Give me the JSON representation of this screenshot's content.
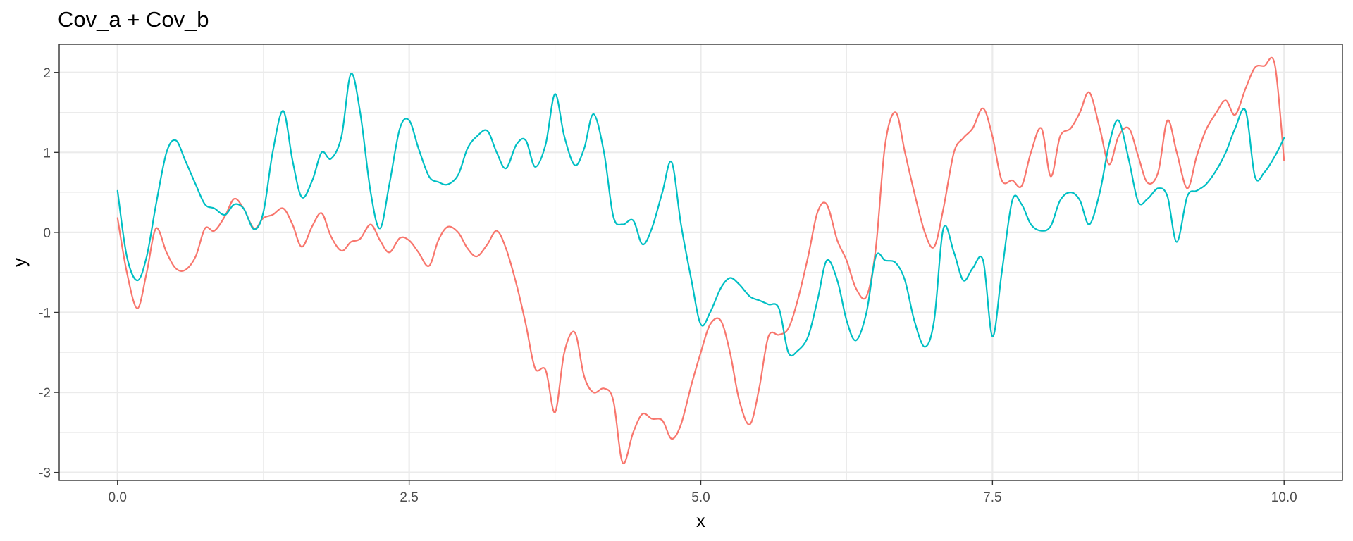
{
  "chart_data": {
    "type": "line",
    "title": "Cov_a + Cov_b",
    "xlabel": "x",
    "ylabel": "y",
    "xlim": [
      -0.5,
      10.5
    ],
    "ylim": [
      -3.1,
      2.35
    ],
    "x_ticks": [
      0.0,
      2.5,
      5.0,
      7.5,
      10.0
    ],
    "x_tick_labels": [
      "0.0",
      "2.5",
      "5.0",
      "7.5",
      "10.0"
    ],
    "y_ticks": [
      -3,
      -2,
      -1,
      0,
      1,
      2
    ],
    "y_tick_labels": [
      "-3",
      "-2",
      "-1",
      "0",
      "1",
      "2"
    ],
    "grid": true,
    "legend": "none",
    "series": [
      {
        "color": "#F8766D",
        "points": [
          [
            0.0,
            0.18
          ],
          [
            0.08,
            -0.5
          ],
          [
            0.17,
            -0.95
          ],
          [
            0.25,
            -0.5
          ],
          [
            0.33,
            0.05
          ],
          [
            0.42,
            -0.25
          ],
          [
            0.5,
            -0.45
          ],
          [
            0.58,
            -0.47
          ],
          [
            0.67,
            -0.3
          ],
          [
            0.75,
            0.05
          ],
          [
            0.83,
            0.02
          ],
          [
            0.92,
            0.2
          ],
          [
            1.0,
            0.42
          ],
          [
            1.08,
            0.3
          ],
          [
            1.17,
            0.05
          ],
          [
            1.25,
            0.18
          ],
          [
            1.33,
            0.22
          ],
          [
            1.42,
            0.3
          ],
          [
            1.5,
            0.1
          ],
          [
            1.58,
            -0.18
          ],
          [
            1.67,
            0.08
          ],
          [
            1.75,
            0.24
          ],
          [
            1.83,
            -0.05
          ],
          [
            1.92,
            -0.23
          ],
          [
            2.0,
            -0.12
          ],
          [
            2.08,
            -0.08
          ],
          [
            2.17,
            0.1
          ],
          [
            2.25,
            -0.1
          ],
          [
            2.33,
            -0.25
          ],
          [
            2.42,
            -0.07
          ],
          [
            2.5,
            -0.1
          ],
          [
            2.58,
            -0.25
          ],
          [
            2.67,
            -0.42
          ],
          [
            2.75,
            -0.1
          ],
          [
            2.83,
            0.07
          ],
          [
            2.92,
            0.0
          ],
          [
            3.0,
            -0.2
          ],
          [
            3.08,
            -0.3
          ],
          [
            3.17,
            -0.15
          ],
          [
            3.25,
            0.02
          ],
          [
            3.33,
            -0.2
          ],
          [
            3.42,
            -0.65
          ],
          [
            3.5,
            -1.15
          ],
          [
            3.58,
            -1.7
          ],
          [
            3.67,
            -1.72
          ],
          [
            3.75,
            -2.25
          ],
          [
            3.83,
            -1.5
          ],
          [
            3.92,
            -1.25
          ],
          [
            4.0,
            -1.8
          ],
          [
            4.08,
            -2.0
          ],
          [
            4.17,
            -1.95
          ],
          [
            4.25,
            -2.1
          ],
          [
            4.33,
            -2.88
          ],
          [
            4.42,
            -2.5
          ],
          [
            4.5,
            -2.27
          ],
          [
            4.58,
            -2.33
          ],
          [
            4.67,
            -2.35
          ],
          [
            4.75,
            -2.58
          ],
          [
            4.83,
            -2.4
          ],
          [
            4.92,
            -1.9
          ],
          [
            5.0,
            -1.5
          ],
          [
            5.08,
            -1.15
          ],
          [
            5.17,
            -1.1
          ],
          [
            5.25,
            -1.5
          ],
          [
            5.33,
            -2.1
          ],
          [
            5.42,
            -2.4
          ],
          [
            5.5,
            -1.95
          ],
          [
            5.58,
            -1.3
          ],
          [
            5.67,
            -1.28
          ],
          [
            5.75,
            -1.2
          ],
          [
            5.83,
            -0.85
          ],
          [
            5.92,
            -0.3
          ],
          [
            6.0,
            0.25
          ],
          [
            6.08,
            0.35
          ],
          [
            6.17,
            -0.1
          ],
          [
            6.25,
            -0.35
          ],
          [
            6.33,
            -0.7
          ],
          [
            6.42,
            -0.8
          ],
          [
            6.5,
            -0.2
          ],
          [
            6.58,
            1.1
          ],
          [
            6.67,
            1.5
          ],
          [
            6.75,
            1.0
          ],
          [
            6.83,
            0.5
          ],
          [
            6.92,
            0.0
          ],
          [
            7.0,
            -0.18
          ],
          [
            7.08,
            0.3
          ],
          [
            7.17,
            1.0
          ],
          [
            7.25,
            1.18
          ],
          [
            7.33,
            1.3
          ],
          [
            7.42,
            1.55
          ],
          [
            7.5,
            1.2
          ],
          [
            7.58,
            0.65
          ],
          [
            7.67,
            0.65
          ],
          [
            7.75,
            0.58
          ],
          [
            7.83,
            1.0
          ],
          [
            7.92,
            1.3
          ],
          [
            8.0,
            0.7
          ],
          [
            8.08,
            1.2
          ],
          [
            8.17,
            1.3
          ],
          [
            8.25,
            1.5
          ],
          [
            8.33,
            1.75
          ],
          [
            8.42,
            1.3
          ],
          [
            8.5,
            0.85
          ],
          [
            8.58,
            1.2
          ],
          [
            8.67,
            1.3
          ],
          [
            8.75,
            0.95
          ],
          [
            8.83,
            0.62
          ],
          [
            8.92,
            0.75
          ],
          [
            9.0,
            1.4
          ],
          [
            9.08,
            1.0
          ],
          [
            9.17,
            0.55
          ],
          [
            9.25,
            0.95
          ],
          [
            9.33,
            1.28
          ],
          [
            9.42,
            1.5
          ],
          [
            9.5,
            1.65
          ],
          [
            9.58,
            1.47
          ],
          [
            9.67,
            1.8
          ],
          [
            9.75,
            2.06
          ],
          [
            9.83,
            2.08
          ],
          [
            9.92,
            2.1
          ],
          [
            10.0,
            0.9
          ]
        ]
      },
      {
        "color": "#00BFC4",
        "points": [
          [
            0.0,
            0.52
          ],
          [
            0.08,
            -0.3
          ],
          [
            0.17,
            -0.6
          ],
          [
            0.25,
            -0.3
          ],
          [
            0.33,
            0.35
          ],
          [
            0.42,
            1.0
          ],
          [
            0.5,
            1.15
          ],
          [
            0.58,
            0.9
          ],
          [
            0.67,
            0.6
          ],
          [
            0.75,
            0.35
          ],
          [
            0.83,
            0.3
          ],
          [
            0.92,
            0.22
          ],
          [
            1.0,
            0.35
          ],
          [
            1.08,
            0.3
          ],
          [
            1.17,
            0.04
          ],
          [
            1.25,
            0.25
          ],
          [
            1.33,
            1.0
          ],
          [
            1.42,
            1.52
          ],
          [
            1.5,
            0.9
          ],
          [
            1.58,
            0.44
          ],
          [
            1.67,
            0.65
          ],
          [
            1.75,
            1.0
          ],
          [
            1.83,
            0.92
          ],
          [
            1.92,
            1.2
          ],
          [
            2.0,
            1.98
          ],
          [
            2.08,
            1.5
          ],
          [
            2.17,
            0.5
          ],
          [
            2.25,
            0.05
          ],
          [
            2.33,
            0.6
          ],
          [
            2.42,
            1.3
          ],
          [
            2.5,
            1.4
          ],
          [
            2.58,
            1.05
          ],
          [
            2.67,
            0.7
          ],
          [
            2.75,
            0.63
          ],
          [
            2.83,
            0.6
          ],
          [
            2.92,
            0.72
          ],
          [
            3.0,
            1.05
          ],
          [
            3.08,
            1.2
          ],
          [
            3.17,
            1.27
          ],
          [
            3.25,
            1.0
          ],
          [
            3.33,
            0.8
          ],
          [
            3.42,
            1.1
          ],
          [
            3.5,
            1.15
          ],
          [
            3.58,
            0.82
          ],
          [
            3.67,
            1.1
          ],
          [
            3.75,
            1.73
          ],
          [
            3.83,
            1.2
          ],
          [
            3.92,
            0.84
          ],
          [
            4.0,
            1.05
          ],
          [
            4.08,
            1.48
          ],
          [
            4.17,
            1.0
          ],
          [
            4.25,
            0.2
          ],
          [
            4.33,
            0.1
          ],
          [
            4.42,
            0.15
          ],
          [
            4.5,
            -0.15
          ],
          [
            4.58,
            0.05
          ],
          [
            4.67,
            0.5
          ],
          [
            4.75,
            0.88
          ],
          [
            4.83,
            0.1
          ],
          [
            4.92,
            -0.6
          ],
          [
            5.0,
            -1.15
          ],
          [
            5.08,
            -1.0
          ],
          [
            5.17,
            -0.7
          ],
          [
            5.25,
            -0.57
          ],
          [
            5.33,
            -0.65
          ],
          [
            5.42,
            -0.8
          ],
          [
            5.5,
            -0.85
          ],
          [
            5.58,
            -0.9
          ],
          [
            5.67,
            -0.95
          ],
          [
            5.75,
            -1.5
          ],
          [
            5.83,
            -1.48
          ],
          [
            5.92,
            -1.3
          ],
          [
            6.0,
            -0.85
          ],
          [
            6.08,
            -0.35
          ],
          [
            6.17,
            -0.6
          ],
          [
            6.25,
            -1.1
          ],
          [
            6.33,
            -1.35
          ],
          [
            6.42,
            -1.0
          ],
          [
            6.5,
            -0.3
          ],
          [
            6.58,
            -0.35
          ],
          [
            6.67,
            -0.38
          ],
          [
            6.75,
            -0.6
          ],
          [
            6.83,
            -1.1
          ],
          [
            6.92,
            -1.43
          ],
          [
            7.0,
            -1.1
          ],
          [
            7.08,
            0.05
          ],
          [
            7.17,
            -0.25
          ],
          [
            7.25,
            -0.6
          ],
          [
            7.33,
            -0.45
          ],
          [
            7.42,
            -0.35
          ],
          [
            7.5,
            -1.3
          ],
          [
            7.58,
            -0.5
          ],
          [
            7.67,
            0.4
          ],
          [
            7.75,
            0.35
          ],
          [
            7.83,
            0.1
          ],
          [
            7.92,
            0.02
          ],
          [
            8.0,
            0.08
          ],
          [
            8.08,
            0.4
          ],
          [
            8.17,
            0.5
          ],
          [
            8.25,
            0.4
          ],
          [
            8.33,
            0.1
          ],
          [
            8.42,
            0.5
          ],
          [
            8.5,
            1.1
          ],
          [
            8.58,
            1.4
          ],
          [
            8.67,
            0.9
          ],
          [
            8.75,
            0.38
          ],
          [
            8.83,
            0.42
          ],
          [
            8.92,
            0.55
          ],
          [
            9.0,
            0.45
          ],
          [
            9.08,
            -0.12
          ],
          [
            9.17,
            0.45
          ],
          [
            9.25,
            0.52
          ],
          [
            9.33,
            0.6
          ],
          [
            9.42,
            0.78
          ],
          [
            9.5,
            1.0
          ],
          [
            9.58,
            1.3
          ],
          [
            9.67,
            1.52
          ],
          [
            9.75,
            0.7
          ],
          [
            9.83,
            0.75
          ],
          [
            9.92,
            0.95
          ],
          [
            10.0,
            1.18
          ]
        ]
      }
    ]
  }
}
